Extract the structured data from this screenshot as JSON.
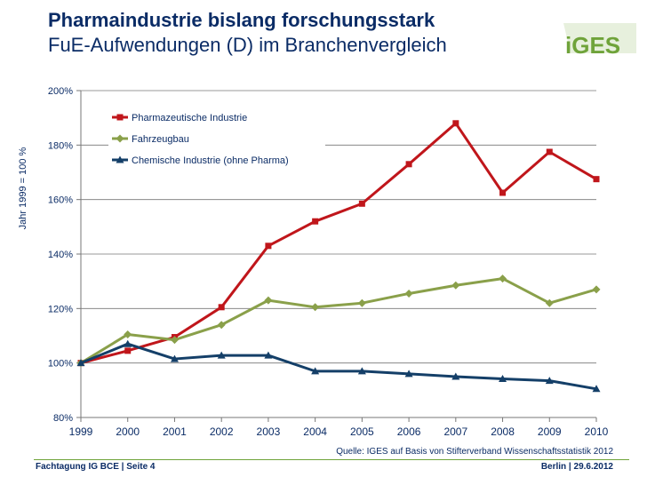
{
  "header": {
    "title": "Pharmaindustrie bislang forschungsstark",
    "subtitle": "FuE-Aufwendungen (D) im Branchenvergleich",
    "logo_text": "iGES"
  },
  "footer": {
    "left": "Fachtagung IG BCE | Seite 4",
    "right": "Berlin | 29.6.2012",
    "source": "Quelle: IGES auf Basis von Stifterverband Wissenschaftsstatistik 2012"
  },
  "colors": {
    "navy": "#0b2c66",
    "green": "#6fa33a",
    "pharma": "#c0161b",
    "fahrzeug": "#8aa04a",
    "chemie": "#143f68"
  },
  "chart_data": {
    "type": "line",
    "title": "",
    "xlabel": "",
    "ylabel": "Jahr 1999 = 100 %",
    "x": [
      "1999",
      "2000",
      "2001",
      "2002",
      "2003",
      "2004",
      "2005",
      "2006",
      "2007",
      "2008",
      "2009",
      "2010"
    ],
    "ylim": [
      80,
      200
    ],
    "yticks": [
      80,
      100,
      120,
      140,
      160,
      180,
      200
    ],
    "ytick_labels": [
      "80%",
      "100%",
      "120%",
      "140%",
      "160%",
      "180%",
      "200%"
    ],
    "legend_position": "top-left",
    "series": [
      {
        "name": "Pharmazeutische Industrie",
        "color": "#c0161b",
        "marker": "square",
        "values": [
          100,
          104.5,
          109.5,
          120.5,
          143,
          152,
          158.5,
          173,
          188,
          162.5,
          177.5,
          167.5
        ]
      },
      {
        "name": "Fahrzeugbau",
        "color": "#8aa04a",
        "marker": "diamond",
        "values": [
          100,
          110.5,
          108.5,
          114,
          123,
          120.5,
          122,
          125.5,
          128.5,
          131,
          122,
          127
        ]
      },
      {
        "name": "Chemische Industrie (ohne Pharma)",
        "color": "#143f68",
        "marker": "triangle",
        "values": [
          100,
          107,
          101.5,
          102.8,
          102.8,
          97,
          97,
          96,
          95,
          94.2,
          93.5,
          90.5
        ]
      }
    ]
  }
}
